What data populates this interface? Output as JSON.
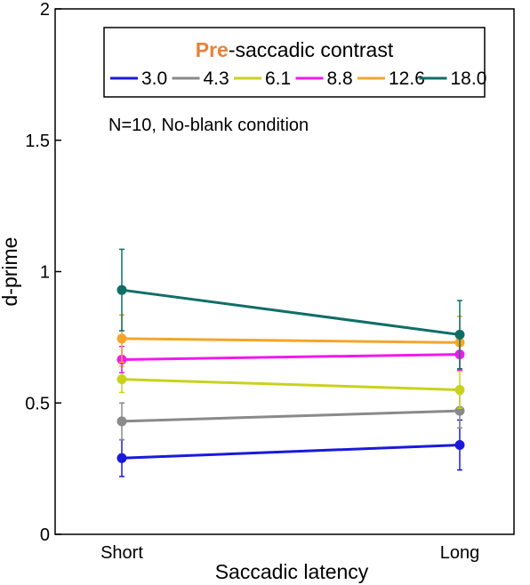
{
  "chart_data": {
    "type": "line",
    "title": "",
    "xlabel": "Saccadic latency",
    "ylabel": "d-prime",
    "categories": [
      "Short",
      "Long"
    ],
    "ylim": [
      0,
      2
    ],
    "yticks": [
      0,
      0.5,
      1,
      1.5,
      2
    ],
    "ytick_labels": [
      "0",
      "0.5",
      "1",
      "1.5",
      "2"
    ],
    "legend": {
      "title_highlight": "Pre",
      "title_rest": "-saccadic contrast",
      "title_highlight_color": "#e8823a",
      "placement": "top"
    },
    "annotation": "N=10, No-blank condition",
    "series": [
      {
        "name": "3.0",
        "color": "#1a1adb",
        "values": [
          0.29,
          0.34
        ],
        "errors": [
          0.07,
          0.095
        ]
      },
      {
        "name": "4.3",
        "color": "#8a8a8a",
        "values": [
          0.43,
          0.47
        ],
        "errors": [
          0.07,
          0.065
        ]
      },
      {
        "name": "6.1",
        "color": "#c8d21e",
        "values": [
          0.59,
          0.55
        ],
        "errors": [
          0.05,
          0.07
        ]
      },
      {
        "name": "8.8",
        "color": "#f019f0",
        "values": [
          0.665,
          0.685
        ],
        "errors": [
          0.05,
          0.06
        ]
      },
      {
        "name": "12.6",
        "color": "#f5a52a",
        "values": [
          0.745,
          0.73
        ],
        "errors": [
          0.09,
          0.1
        ]
      },
      {
        "name": "18.0",
        "color": "#0f6e68",
        "values": [
          0.93,
          0.76
        ],
        "errors": [
          0.155,
          0.13
        ]
      }
    ]
  }
}
